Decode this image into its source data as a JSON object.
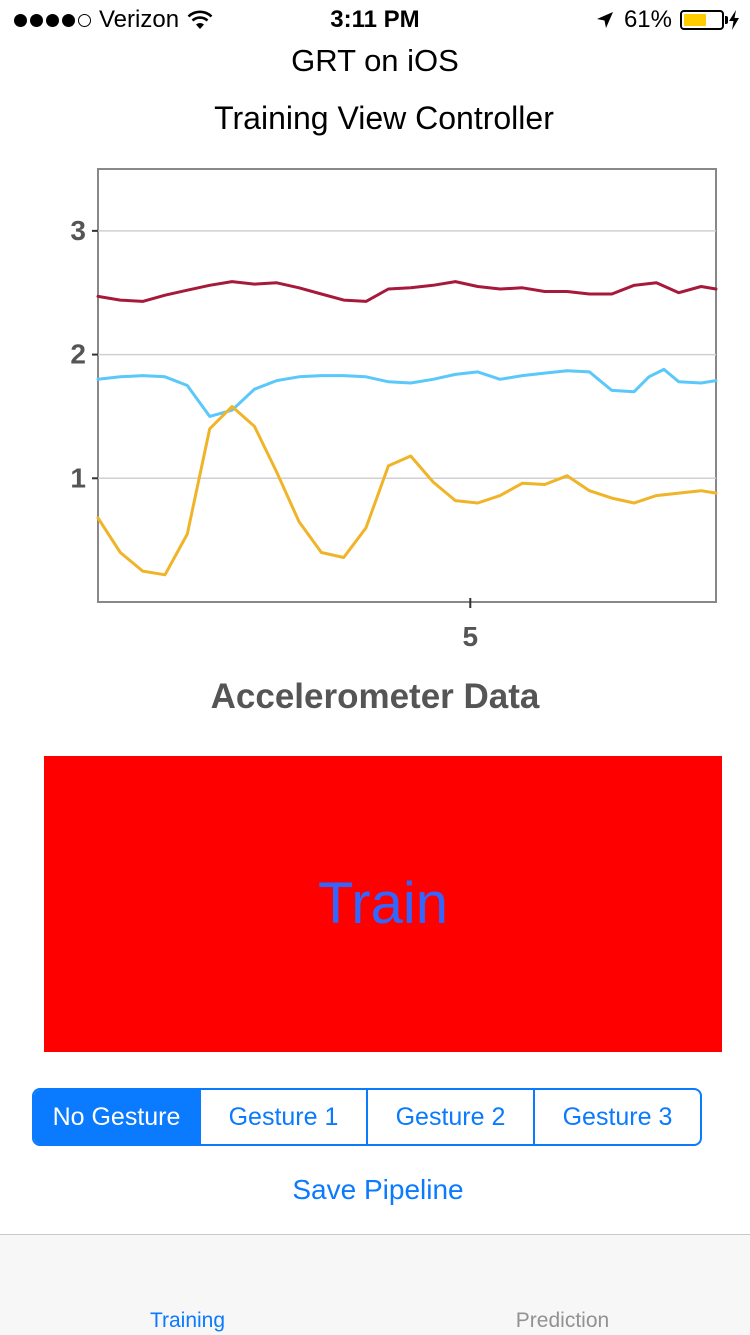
{
  "status_bar": {
    "carrier": "Verizon",
    "time": "3:11 PM",
    "battery_percent": "61%",
    "battery_level": 0.61,
    "signal_bars_filled": 4,
    "signal_bars_total": 5,
    "battery_color": "#ffcc00"
  },
  "header": {
    "app_title": "GRT on iOS",
    "view_title": "Training View Controller"
  },
  "chart_data": {
    "type": "line",
    "title": "Accelerometer Data",
    "xlabel": "",
    "ylabel": "",
    "y_ticks": [
      "1",
      "2",
      "3"
    ],
    "x_ticks": [
      "5"
    ],
    "x_tick_values": [
      5
    ],
    "ylim": [
      0.0,
      3.5
    ],
    "xlim": [
      0.0,
      8.3
    ],
    "grid": true,
    "series": [
      {
        "color": "#a6193a",
        "x": [
          0.0,
          0.3,
          0.6,
          0.9,
          1.2,
          1.5,
          1.8,
          2.1,
          2.4,
          2.7,
          3.0,
          3.3,
          3.6,
          3.9,
          4.2,
          4.5,
          4.8,
          5.1,
          5.4,
          5.7,
          6.0,
          6.3,
          6.6,
          6.9,
          7.2,
          7.5,
          7.8,
          8.1,
          8.3
        ],
        "y": [
          2.47,
          2.44,
          2.43,
          2.48,
          2.52,
          2.56,
          2.59,
          2.57,
          2.58,
          2.54,
          2.49,
          2.44,
          2.43,
          2.53,
          2.54,
          2.56,
          2.59,
          2.55,
          2.53,
          2.54,
          2.51,
          2.51,
          2.49,
          2.49,
          2.56,
          2.58,
          2.5,
          2.55,
          2.53
        ]
      },
      {
        "color": "#5ac8fa",
        "x": [
          0.0,
          0.3,
          0.6,
          0.9,
          1.2,
          1.5,
          1.8,
          2.1,
          2.4,
          2.7,
          3.0,
          3.3,
          3.6,
          3.9,
          4.2,
          4.5,
          4.8,
          5.1,
          5.4,
          5.7,
          6.0,
          6.3,
          6.6,
          6.9,
          7.2,
          7.4,
          7.6,
          7.8,
          8.1,
          8.3
        ],
        "y": [
          1.8,
          1.82,
          1.83,
          1.82,
          1.75,
          1.5,
          1.55,
          1.72,
          1.79,
          1.82,
          1.83,
          1.83,
          1.82,
          1.78,
          1.77,
          1.8,
          1.84,
          1.86,
          1.8,
          1.83,
          1.85,
          1.87,
          1.86,
          1.71,
          1.7,
          1.82,
          1.88,
          1.78,
          1.77,
          1.79
        ]
      },
      {
        "color": "#f0b429",
        "x": [
          0.0,
          0.3,
          0.6,
          0.9,
          1.2,
          1.5,
          1.8,
          2.1,
          2.4,
          2.7,
          3.0,
          3.3,
          3.6,
          3.9,
          4.2,
          4.5,
          4.8,
          5.1,
          5.4,
          5.7,
          6.0,
          6.3,
          6.6,
          6.9,
          7.2,
          7.5,
          7.8,
          8.1,
          8.3
        ],
        "y": [
          0.68,
          0.4,
          0.25,
          0.22,
          0.55,
          1.4,
          1.58,
          1.42,
          1.05,
          0.65,
          0.4,
          0.36,
          0.6,
          1.1,
          1.18,
          0.97,
          0.82,
          0.8,
          0.86,
          0.96,
          0.95,
          1.02,
          0.9,
          0.84,
          0.8,
          0.86,
          0.88,
          0.9,
          0.88
        ]
      }
    ]
  },
  "train_button": {
    "label": "Train",
    "background": "#ff0000",
    "text_color": "#3366ff"
  },
  "gesture_selector": {
    "options": [
      "No Gesture",
      "Gesture 1",
      "Gesture 2",
      "Gesture 3"
    ],
    "selected_index": 0
  },
  "save_pipeline_label": "Save Pipeline",
  "tab_bar": {
    "tabs": [
      {
        "label": "Training",
        "selected": true
      },
      {
        "label": "Prediction",
        "selected": false
      }
    ]
  },
  "accent_color": "#0a7aff"
}
